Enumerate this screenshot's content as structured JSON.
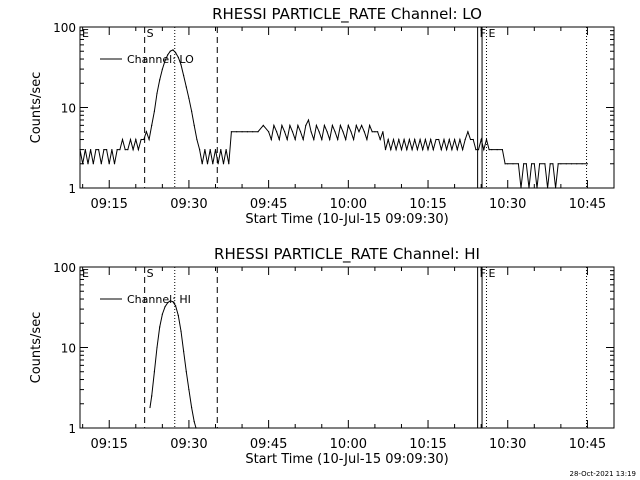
{
  "footer_timestamp": "28-Oct-2021 13:19",
  "chart_data": [
    {
      "type": "line",
      "title": "RHESSI PARTICLE_RATE Channel: LO",
      "xlabel": "Start Time (10-Jul-15 09:09:30)",
      "ylabel": "Counts/sec",
      "x_ticks": [
        "09:15",
        "09:30",
        "09:45",
        "10:00",
        "10:15",
        "10:30",
        "10:45"
      ],
      "y_ticks": [
        "1",
        "10",
        "100"
      ],
      "yscale": "log",
      "xlim": [
        "09:09:30",
        "10:50:00"
      ],
      "ylim": [
        1,
        100
      ],
      "legend": {
        "label": "Channel: LO",
        "placement": "top-left"
      },
      "markers": [
        {
          "label": "E",
          "time": "09:09:30",
          "style": "solid"
        },
        {
          "label": "S",
          "time": "09:21:40",
          "style": "dashed"
        },
        {
          "label": "",
          "time": "09:27:20",
          "style": "dotted"
        },
        {
          "label": "",
          "time": "09:35:20",
          "style": "dashed"
        },
        {
          "label": "F",
          "time": "10:24:20",
          "style": "solid"
        },
        {
          "label": "",
          "time": "10:25:10",
          "style": "solid"
        },
        {
          "label": "E",
          "time": "10:26:00",
          "style": "dotted"
        },
        {
          "label": "",
          "time": "10:44:50",
          "style": "dotted"
        }
      ],
      "series": [
        {
          "name": "Channel: LO",
          "points": [
            [
              "09:09:30",
              3
            ],
            [
              "09:10:00",
              2
            ],
            [
              "09:10:30",
              3
            ],
            [
              "09:11:00",
              2
            ],
            [
              "09:11:30",
              3
            ],
            [
              "09:12:00",
              2
            ],
            [
              "09:12:30",
              3
            ],
            [
              "09:13:00",
              3
            ],
            [
              "09:13:30",
              2
            ],
            [
              "09:14:00",
              3
            ],
            [
              "09:14:30",
              3
            ],
            [
              "09:15:00",
              2
            ],
            [
              "09:15:30",
              3
            ],
            [
              "09:16:00",
              2
            ],
            [
              "09:16:30",
              3
            ],
            [
              "09:17:00",
              3
            ],
            [
              "09:17:30",
              4
            ],
            [
              "09:18:00",
              3
            ],
            [
              "09:18:30",
              3
            ],
            [
              "09:19:00",
              4
            ],
            [
              "09:19:30",
              3
            ],
            [
              "09:20:00",
              4
            ],
            [
              "09:20:30",
              3
            ],
            [
              "09:21:00",
              4
            ],
            [
              "09:21:30",
              4
            ],
            [
              "09:22:00",
              5
            ],
            [
              "09:22:30",
              4
            ],
            [
              "09:23:00",
              6
            ],
            [
              "09:23:30",
              9
            ],
            [
              "09:24:00",
              15
            ],
            [
              "09:24:30",
              22
            ],
            [
              "09:25:00",
              30
            ],
            [
              "09:25:30",
              38
            ],
            [
              "09:26:00",
              45
            ],
            [
              "09:26:30",
              50
            ],
            [
              "09:27:00",
              52
            ],
            [
              "09:27:30",
              48
            ],
            [
              "09:28:00",
              42
            ],
            [
              "09:28:30",
              34
            ],
            [
              "09:29:00",
              25
            ],
            [
              "09:29:30",
              18
            ],
            [
              "09:30:00",
              13
            ],
            [
              "09:30:30",
              9
            ],
            [
              "09:31:00",
              6
            ],
            [
              "09:31:30",
              4
            ],
            [
              "09:32:00",
              3
            ],
            [
              "09:32:30",
              2
            ],
            [
              "09:33:00",
              3
            ],
            [
              "09:33:30",
              2
            ],
            [
              "09:34:00",
              3
            ],
            [
              "09:34:30",
              2
            ],
            [
              "09:35:00",
              3
            ],
            [
              "09:35:30",
              2
            ],
            [
              "09:36:00",
              3
            ],
            [
              "09:36:30",
              2
            ],
            [
              "09:37:00",
              3
            ],
            [
              "09:37:30",
              2
            ],
            [
              "09:38:00",
              5
            ],
            [
              "09:39:00",
              5
            ],
            [
              "09:40:00",
              5
            ],
            [
              "09:41:00",
              5
            ],
            [
              "09:42:00",
              5
            ],
            [
              "09:43:00",
              5
            ],
            [
              "09:44:00",
              6
            ],
            [
              "09:45:00",
              5
            ],
            [
              "09:45:30",
              4
            ],
            [
              "09:46:00",
              6
            ],
            [
              "09:46:30",
              5
            ],
            [
              "09:47:00",
              4
            ],
            [
              "09:47:30",
              6
            ],
            [
              "09:48:00",
              5
            ],
            [
              "09:48:30",
              4
            ],
            [
              "09:49:00",
              6
            ],
            [
              "09:49:30",
              5
            ],
            [
              "09:50:00",
              4
            ],
            [
              "09:50:30",
              6
            ],
            [
              "09:51:00",
              5
            ],
            [
              "09:51:30",
              4
            ],
            [
              "09:52:00",
              6
            ],
            [
              "09:52:30",
              7
            ],
            [
              "09:53:00",
              5
            ],
            [
              "09:53:30",
              4
            ],
            [
              "09:54:00",
              6
            ],
            [
              "09:54:30",
              5
            ],
            [
              "09:55:00",
              4
            ],
            [
              "09:55:30",
              6
            ],
            [
              "09:56:00",
              5
            ],
            [
              "09:56:30",
              4
            ],
            [
              "09:57:00",
              6
            ],
            [
              "09:57:30",
              5
            ],
            [
              "09:58:00",
              4
            ],
            [
              "09:58:30",
              6
            ],
            [
              "09:59:00",
              5
            ],
            [
              "09:59:30",
              4
            ],
            [
              "10:00:00",
              6
            ],
            [
              "10:00:30",
              5
            ],
            [
              "10:01:00",
              4
            ],
            [
              "10:01:30",
              6
            ],
            [
              "10:02:00",
              5
            ],
            [
              "10:02:30",
              6
            ],
            [
              "10:03:00",
              5
            ],
            [
              "10:03:30",
              4
            ],
            [
              "10:04:00",
              6
            ],
            [
              "10:04:30",
              5
            ],
            [
              "10:05:00",
              5
            ],
            [
              "10:05:30",
              5
            ],
            [
              "10:06:00",
              4
            ],
            [
              "10:06:30",
              5
            ],
            [
              "10:07:00",
              3
            ],
            [
              "10:07:30",
              4
            ],
            [
              "10:08:00",
              3
            ],
            [
              "10:08:30",
              4
            ],
            [
              "10:09:00",
              3
            ],
            [
              "10:09:30",
              4
            ],
            [
              "10:10:00",
              3
            ],
            [
              "10:10:30",
              4
            ],
            [
              "10:11:00",
              3
            ],
            [
              "10:11:30",
              4
            ],
            [
              "10:12:00",
              3
            ],
            [
              "10:12:30",
              4
            ],
            [
              "10:13:00",
              3
            ],
            [
              "10:13:30",
              4
            ],
            [
              "10:14:00",
              3
            ],
            [
              "10:14:30",
              4
            ],
            [
              "10:15:00",
              3
            ],
            [
              "10:15:30",
              4
            ],
            [
              "10:16:00",
              3
            ],
            [
              "10:16:30",
              4
            ],
            [
              "10:17:00",
              4
            ],
            [
              "10:17:30",
              3
            ],
            [
              "10:18:00",
              4
            ],
            [
              "10:18:30",
              3
            ],
            [
              "10:19:00",
              4
            ],
            [
              "10:19:30",
              3
            ],
            [
              "10:20:00",
              4
            ],
            [
              "10:20:30",
              3
            ],
            [
              "10:21:00",
              4
            ],
            [
              "10:21:30",
              3
            ],
            [
              "10:22:00",
              4
            ],
            [
              "10:22:30",
              5
            ],
            [
              "10:23:00",
              4
            ],
            [
              "10:23:30",
              4
            ],
            [
              "10:24:00",
              3
            ],
            [
              "10:24:30",
              3
            ],
            [
              "10:25:00",
              4
            ],
            [
              "10:25:30",
              3
            ],
            [
              "10:26:00",
              4
            ],
            [
              "10:26:30",
              3
            ],
            [
              "10:27:00",
              3
            ],
            [
              "10:28:00",
              3
            ],
            [
              "10:29:00",
              3
            ],
            [
              "10:29:30",
              2
            ],
            [
              "10:30:00",
              2
            ],
            [
              "10:31:00",
              2
            ],
            [
              "10:32:00",
              2
            ],
            [
              "10:32:30",
              1
            ],
            [
              "10:33:00",
              2
            ],
            [
              "10:33:30",
              2
            ],
            [
              "10:34:00",
              1
            ],
            [
              "10:34:30",
              2
            ],
            [
              "10:35:00",
              2
            ],
            [
              "10:35:30",
              1
            ],
            [
              "10:36:00",
              2
            ],
            [
              "10:37:00",
              2
            ],
            [
              "10:37:30",
              1
            ],
            [
              "10:38:00",
              2
            ],
            [
              "10:38:30",
              2
            ],
            [
              "10:39:00",
              1
            ],
            [
              "10:39:30",
              2
            ],
            [
              "10:40:00",
              2
            ],
            [
              "10:41:00",
              2
            ],
            [
              "10:42:00",
              2
            ],
            [
              "10:43:00",
              2
            ],
            [
              "10:44:00",
              2
            ],
            [
              "10:45:00",
              2
            ]
          ]
        }
      ]
    },
    {
      "type": "line",
      "title": "RHESSI PARTICLE_RATE Channel: HI",
      "xlabel": "Start Time (10-Jul-15 09:09:30)",
      "ylabel": "Counts/sec",
      "x_ticks": [
        "09:15",
        "09:30",
        "09:45",
        "10:00",
        "10:15",
        "10:30",
        "10:45"
      ],
      "y_ticks": [
        "1",
        "10",
        "100"
      ],
      "yscale": "log",
      "xlim": [
        "09:09:30",
        "10:50:00"
      ],
      "ylim": [
        1,
        100
      ],
      "legend": {
        "label": "Channel: HI",
        "placement": "top-left"
      },
      "markers": [
        {
          "label": "E",
          "time": "09:09:30",
          "style": "solid"
        },
        {
          "label": "S",
          "time": "09:21:40",
          "style": "dashed"
        },
        {
          "label": "",
          "time": "09:27:20",
          "style": "dotted"
        },
        {
          "label": "",
          "time": "09:35:20",
          "style": "dashed"
        },
        {
          "label": "F",
          "time": "10:24:20",
          "style": "solid"
        },
        {
          "label": "",
          "time": "10:25:10",
          "style": "solid"
        },
        {
          "label": "E",
          "time": "10:26:00",
          "style": "dotted"
        },
        {
          "label": "",
          "time": "10:44:50",
          "style": "dotted"
        }
      ],
      "series": [
        {
          "name": "Channel: HI",
          "points": [
            [
              "09:22:40",
              1.8
            ],
            [
              "09:23:00",
              2.5
            ],
            [
              "09:23:30",
              5
            ],
            [
              "09:24:00",
              10
            ],
            [
              "09:24:30",
              18
            ],
            [
              "09:25:00",
              26
            ],
            [
              "09:25:30",
              32
            ],
            [
              "09:26:00",
              36
            ],
            [
              "09:26:30",
              38
            ],
            [
              "09:27:00",
              37
            ],
            [
              "09:27:30",
              33
            ],
            [
              "09:28:00",
              25
            ],
            [
              "09:28:30",
              16
            ],
            [
              "09:29:00",
              9
            ],
            [
              "09:29:30",
              5
            ],
            [
              "09:30:00",
              3
            ],
            [
              "09:30:30",
              1.8
            ],
            [
              "09:31:00",
              1.2
            ],
            [
              "09:31:20",
              1
            ]
          ]
        }
      ]
    }
  ]
}
